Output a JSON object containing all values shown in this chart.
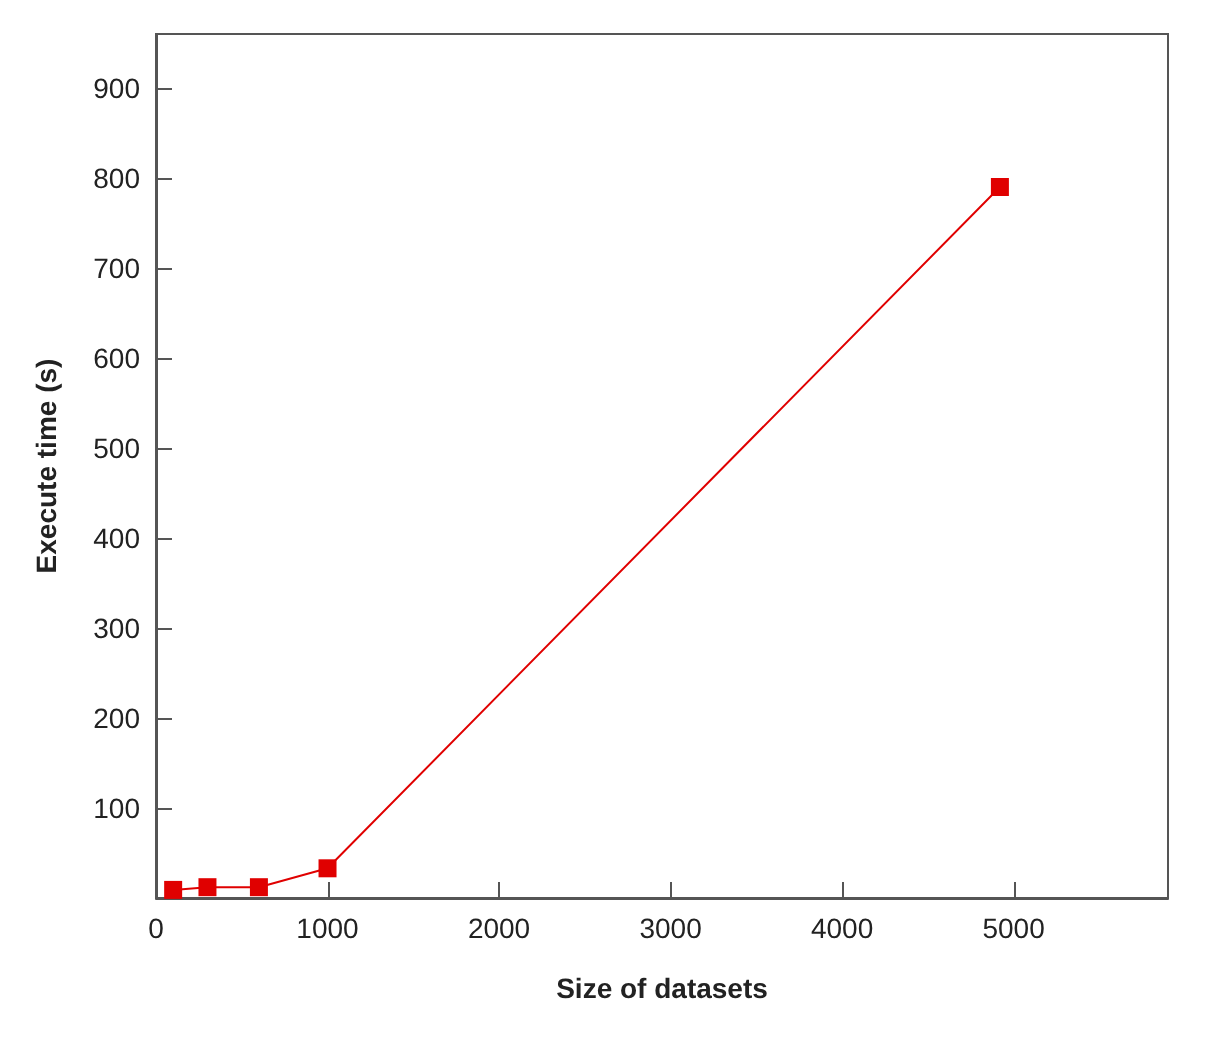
{
  "chart_data": {
    "type": "line",
    "xlabel": "Size of datasets",
    "ylabel": "Execute time (s)",
    "x": [
      100,
      300,
      600,
      1000,
      4920
    ],
    "series": [
      {
        "color": "#e00000",
        "values": [
          9,
          12,
          12,
          33,
          790
        ]
      }
    ],
    "xlim": [
      0,
      5900
    ],
    "ylim": [
      0,
      960
    ],
    "xticks": [
      0,
      1000,
      2000,
      3000,
      4000,
      5000
    ],
    "yticks": [
      100,
      200,
      300,
      400,
      500,
      600,
      700,
      800,
      900
    ],
    "marker": "square",
    "line_style": "solid",
    "grid": false
  }
}
